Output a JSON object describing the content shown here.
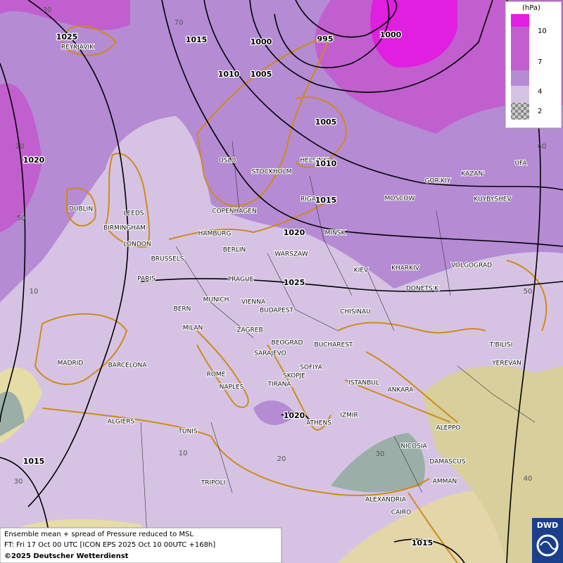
{
  "legend": {
    "unit": "(hPa)",
    "levels": [
      10,
      7,
      4,
      2
    ]
  },
  "cities": [
    "REYKJAVIK",
    "OSLO",
    "STOCKHOLM",
    "HELSINKI",
    "DUBLIN",
    "LEEDS",
    "BIRMINGHAM",
    "LONDON",
    "COPENHAGEN",
    "HAMBURG",
    "RIGA",
    "MINSK",
    "MOSCOW",
    "GOR'KIY",
    "KAZAN'",
    "UFA",
    "KUYBYSHEV",
    "BERLIN",
    "WARSZAW",
    "BRUSSELS",
    "PARIS",
    "PRAGUE",
    "KIEV",
    "KHARKIV",
    "VOLGOGRAD",
    "DONETS'K",
    "MUNICH",
    "VIENNA",
    "BERN",
    "BUDAPEST",
    "CHISINAU",
    "MILAN",
    "ZAGREB",
    "BEOGRAD",
    "BUCHAREST",
    "T'BILISI",
    "MADRID",
    "BARCELONA",
    "SARAJEVO",
    "SOFIYA",
    "YEREVAN",
    "ROME",
    "SKOPJE",
    "ISTANBUL",
    "NAPLES",
    "TIRANA",
    "ANKARA",
    "IZMIR",
    "ATHENS",
    "ALGIERS",
    "TUNIS",
    "ALEPPO",
    "NICOSIA",
    "DAMASCUS",
    "AMMAN",
    "TRIPOLI",
    "ALEXANDRIA",
    "CAIRO"
  ],
  "isobars": [
    1025,
    1015,
    1000,
    995,
    1000,
    1010,
    1005,
    1005,
    1010,
    1020,
    1015,
    1020,
    1025,
    1020,
    1015,
    1015
  ],
  "graticule": [
    30,
    70,
    20,
    60,
    50,
    10,
    50,
    10,
    20,
    30,
    30,
    40
  ],
  "footer": {
    "line1": "Ensemble mean + spread of Pressure reduced to MSL",
    "line2": "FT: Fri 17 Oct 00 UTC [ICON EPS 2025 Oct 10 00UTC +168h]",
    "line3": "©2025 Deutscher Wetterdienst"
  },
  "logo": "DWD"
}
